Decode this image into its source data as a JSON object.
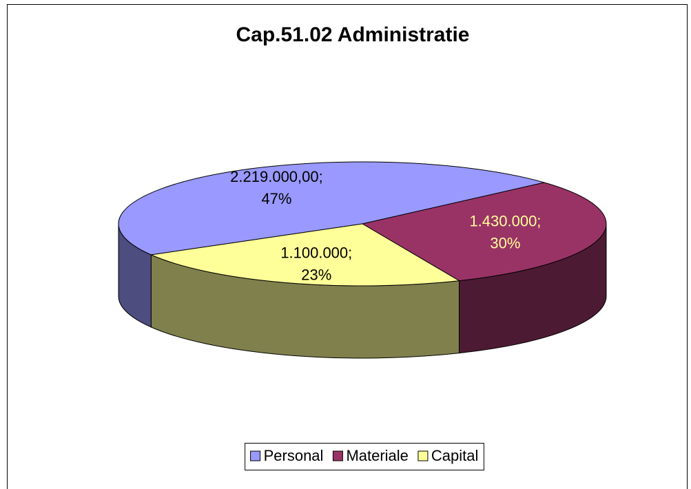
{
  "chart_data": {
    "type": "pie",
    "title": "Cap.51.02 Administratie",
    "categories": [
      "Personal",
      "Materiale",
      "Capital"
    ],
    "values": [
      2219000,
      1430000,
      1100000
    ],
    "value_labels": [
      "2.219.000,00;",
      "1.430.000;",
      "1.100.000;"
    ],
    "percent_labels": [
      "47%",
      "30%",
      "23%"
    ],
    "colors": [
      "#9999ff",
      "#993366",
      "#ffff99"
    ],
    "legend": "bottom"
  }
}
